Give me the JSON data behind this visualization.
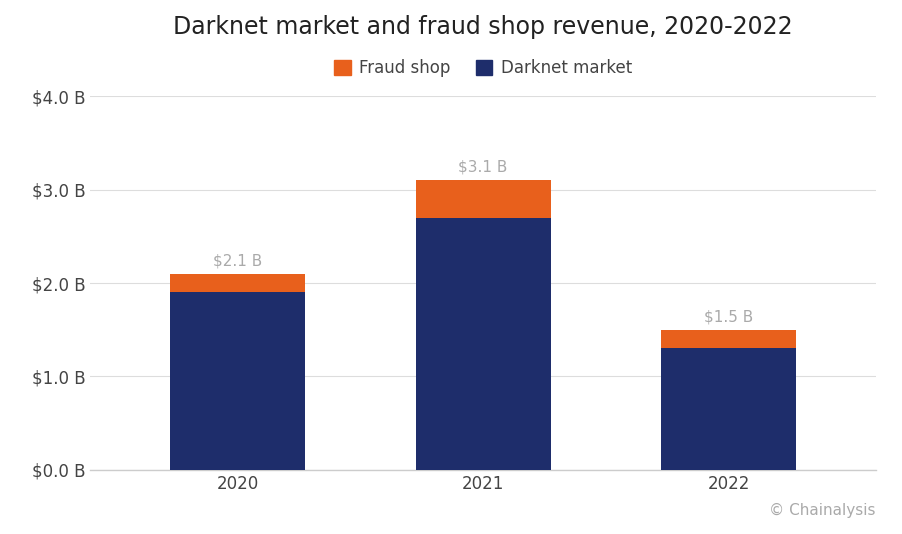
{
  "title": "Darknet market and fraud shop revenue, 2020-2022",
  "categories": [
    "2020",
    "2021",
    "2022"
  ],
  "darknet_values": [
    1.9,
    2.7,
    1.3
  ],
  "fraud_values": [
    0.2,
    0.4,
    0.2
  ],
  "totals": [
    "$2.1 B",
    "$3.1 B",
    "$1.5 B"
  ],
  "darknet_color": "#1e2d6b",
  "fraud_color": "#e8601c",
  "background_color": "#ffffff",
  "ylim": [
    0,
    4.0
  ],
  "yticks": [
    0.0,
    1.0,
    2.0,
    3.0,
    4.0
  ],
  "bar_width": 0.55,
  "title_fontsize": 17,
  "legend_fontsize": 12,
  "tick_fontsize": 12,
  "annotation_fontsize": 11,
  "annotation_color": "#aaaaaa",
  "source_text": "© Chainalysis",
  "source_fontsize": 11,
  "source_color": "#aaaaaa",
  "grid_color": "#dddddd",
  "spine_color": "#cccccc"
}
